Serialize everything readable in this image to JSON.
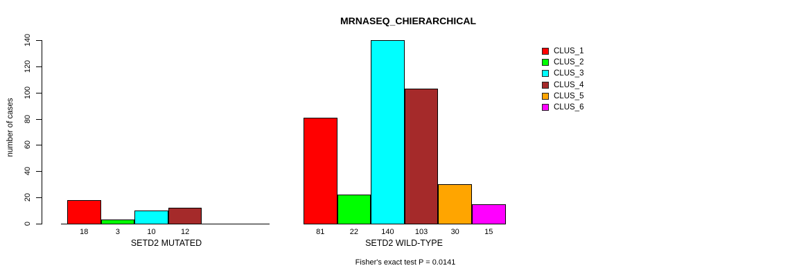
{
  "title": "MRNASEQ_CHIERARCHICAL",
  "legend": {
    "items": [
      {
        "label": "CLUS_1",
        "color": "#FF0000"
      },
      {
        "label": "CLUS_2",
        "color": "#00FF00"
      },
      {
        "label": "CLUS_3",
        "color": "#00FFFF"
      },
      {
        "label": "CLUS_4",
        "color": "#A52A2A"
      },
      {
        "label": "CLUS_5",
        "color": "#FFA500"
      },
      {
        "label": "CLUS_6",
        "color": "#FF00FF"
      }
    ]
  },
  "chart_data": {
    "type": "bar",
    "title": "MRNASEQ_CHIERARCHICAL",
    "xlabel": "",
    "ylabel": "number of cases",
    "ylim": [
      0,
      140
    ],
    "yticks": [
      0,
      20,
      40,
      60,
      80,
      100,
      120,
      140
    ],
    "grid": false,
    "legend_position": "right",
    "series": [
      "CLUS_1",
      "CLUS_2",
      "CLUS_3",
      "CLUS_4",
      "CLUS_5",
      "CLUS_6"
    ],
    "series_colors": [
      "#FF0000",
      "#00FF00",
      "#00FFFF",
      "#A52A2A",
      "#FFA500",
      "#FF00FF"
    ],
    "groups": [
      {
        "label": "SETD2 MUTATED",
        "values": [
          18,
          3,
          10,
          12,
          null,
          null
        ]
      },
      {
        "label": "SETD2 WILD-TYPE",
        "values": [
          81,
          22,
          140,
          103,
          30,
          15
        ]
      }
    ],
    "bar_value_labels_shown": true,
    "annotation": "Fisher's exact test P = 0.0141"
  }
}
